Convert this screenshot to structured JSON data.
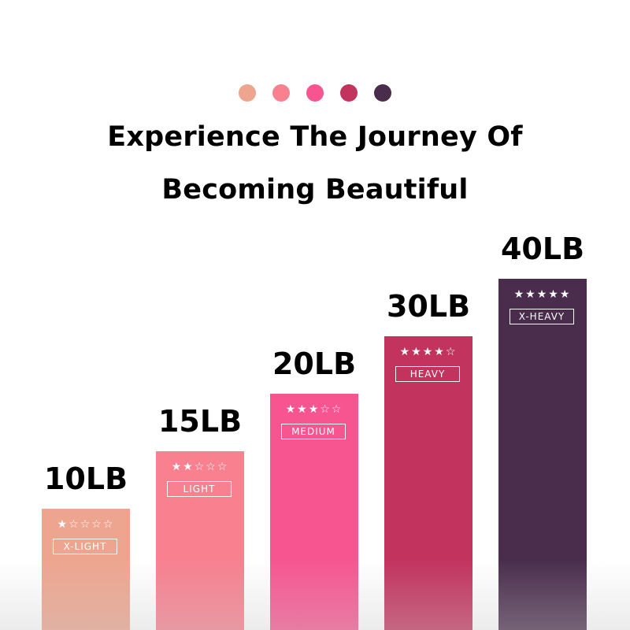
{
  "header": {
    "dot_colors": [
      "#eea58f",
      "#f8808f",
      "#f75590",
      "#c2335e",
      "#4a2d4d"
    ],
    "title_line1": "Experience The Journey Of",
    "title_line2": "Becoming Beautiful"
  },
  "chart_data": {
    "type": "bar",
    "categories": [
      "10LB",
      "15LB",
      "20LB",
      "30LB",
      "40LB"
    ],
    "values": [
      10,
      15,
      20,
      30,
      40
    ],
    "unit": "LB",
    "levels": [
      "X-LIGHT",
      "LIGHT",
      "MEDIUM",
      "HEAVY",
      "X-HEAVY"
    ],
    "stars": [
      1,
      2,
      3,
      4,
      5
    ],
    "max_stars": 5,
    "colors": [
      "#eea58f",
      "#f8808f",
      "#f75590",
      "#c2335e",
      "#4a2d4d"
    ]
  }
}
